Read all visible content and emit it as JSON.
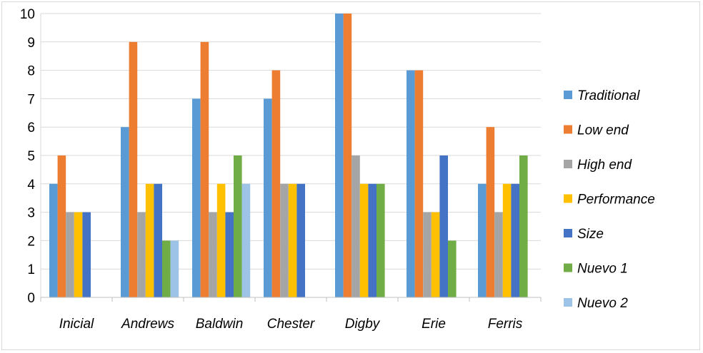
{
  "chart_data": {
    "type": "bar",
    "title": "",
    "xlabel": "",
    "ylabel": "",
    "ylim": [
      0,
      10
    ],
    "yticks": [
      0,
      1,
      2,
      3,
      4,
      5,
      6,
      7,
      8,
      9,
      10
    ],
    "grid": true,
    "legend_position": "right",
    "categories": [
      "Inicial",
      "Andrews",
      "Baldwin",
      "Chester",
      "Digby",
      "Erie",
      "Ferris"
    ],
    "series": [
      {
        "name": "Traditional",
        "color": "#5b9bd5",
        "values": [
          4,
          6,
          7,
          7,
          10,
          8,
          4
        ]
      },
      {
        "name": "Low end",
        "color": "#ed7d31",
        "values": [
          5,
          9,
          9,
          8,
          10,
          8,
          6
        ]
      },
      {
        "name": "High end",
        "color": "#a5a5a5",
        "values": [
          3,
          3,
          3,
          4,
          5,
          3,
          3
        ]
      },
      {
        "name": "Performance",
        "color": "#ffc000",
        "values": [
          3,
          4,
          4,
          4,
          4,
          3,
          4
        ]
      },
      {
        "name": "Size",
        "color": "#4472c4",
        "values": [
          3,
          4,
          3,
          4,
          4,
          5,
          4
        ]
      },
      {
        "name": "Nuevo 1",
        "color": "#70ad47",
        "values": [
          0,
          2,
          5,
          0,
          4,
          2,
          5
        ]
      },
      {
        "name": "Nuevo 2",
        "color": "#9dc3e6",
        "values": [
          0,
          2,
          4,
          0,
          0,
          0,
          0
        ]
      }
    ]
  }
}
